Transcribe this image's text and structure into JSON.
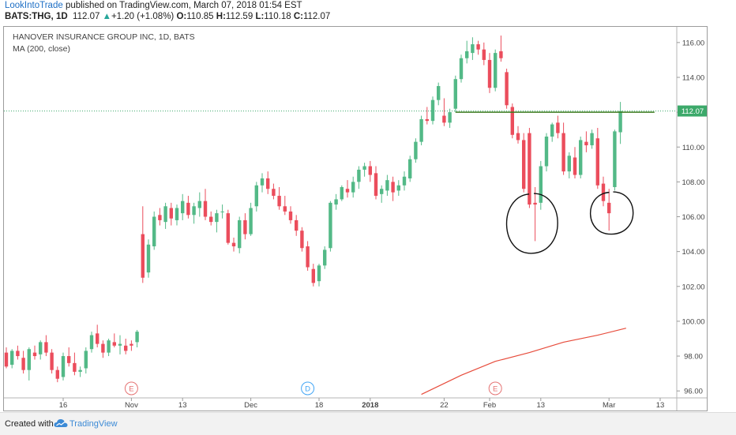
{
  "header": {
    "author": "LookIntoTrade",
    "published_text": "published on TradingView.com, March 07, 2018 01:54 EST",
    "symbol": "BATS:THG, 1D",
    "last": "112.07",
    "change_arrow": "▲",
    "change": "+1.20 (+1.08%)",
    "o_label": "O:",
    "o_value": "110.85",
    "h_label": "H:",
    "h_value": "112.59",
    "l_label": "L:",
    "l_value": "110.18",
    "c_label": "C:",
    "c_value": "112.07"
  },
  "legend": {
    "title": "HANOVER INSURANCE GROUP INC, 1D, BATS",
    "ma": "MA (200, close)"
  },
  "footer": {
    "created_with": "Created with",
    "brand": "TradingView",
    "logo_icon": "tradingview-cloud-icon"
  },
  "colors": {
    "up": "#53b987",
    "down": "#eb4d5c",
    "ma": "#e74c3c",
    "resistance": "#3b7a1e",
    "price_label": "#3ca96a",
    "event_earnings": "#e57373",
    "event_dividend": "#42a5f5"
  },
  "chart_data": {
    "type": "candlestick",
    "title": "HANOVER INSURANCE GROUP INC, 1D, BATS",
    "ylim": [
      95.6,
      116.9
    ],
    "y_ticks": [
      96,
      98,
      100,
      102,
      104,
      106,
      108,
      110,
      112,
      114,
      116
    ],
    "x_tick_labels": [
      {
        "label": "16",
        "index": 10
      },
      {
        "label": "Nov",
        "index": 22
      },
      {
        "label": "13",
        "index": 31
      },
      {
        "label": "Dec",
        "index": 43
      },
      {
        "label": "18",
        "index": 55
      },
      {
        "label": "2018",
        "index": 64
      },
      {
        "label": "22",
        "index": 77
      },
      {
        "label": "Feb",
        "index": 85
      },
      {
        "label": "13",
        "index": 94
      },
      {
        "label": "Mar",
        "index": 106
      },
      {
        "label": "13",
        "index": 115
      }
    ],
    "current_price": 112.07,
    "current_price_label": "112.07",
    "resistance_level": 112.0,
    "resistance_range": [
      79,
      114
    ],
    "events": [
      {
        "label": "E",
        "index": 22,
        "kind": "earnings"
      },
      {
        "label": "D",
        "index": 53,
        "kind": "dividend"
      },
      {
        "label": "E",
        "index": 86,
        "kind": "earnings"
      }
    ],
    "ma200": {
      "name": "MA (200, close)",
      "points": [
        [
          73,
          95.8
        ],
        [
          80,
          96.9
        ],
        [
          86,
          97.7
        ],
        [
          92,
          98.2
        ],
        [
          98,
          98.8
        ],
        [
          104,
          99.2
        ],
        [
          109,
          99.6
        ]
      ]
    },
    "annotations": [
      {
        "kind": "hand-drawn-circle",
        "cx_index": 92.5,
        "cy_value": 105.6,
        "rx_days": 5.5,
        "ry_units": 1.7
      },
      {
        "kind": "hand-drawn-circle",
        "cx_index": 106.5,
        "cy_value": 106.2,
        "rx_days": 4.6,
        "ry_units": 1.2
      }
    ],
    "candles": [
      [
        98.2,
        98.5,
        97.3,
        97.4
      ],
      [
        97.5,
        98.4,
        97.3,
        98.3
      ],
      [
        98.3,
        98.6,
        97.8,
        98.0
      ],
      [
        97.9,
        98.3,
        97.0,
        97.2
      ],
      [
        97.2,
        98.5,
        96.6,
        98.4
      ],
      [
        98.2,
        98.6,
        97.8,
        98.0
      ],
      [
        98.1,
        98.9,
        97.8,
        98.8
      ],
      [
        98.8,
        99.2,
        98.0,
        98.2
      ],
      [
        98.2,
        98.4,
        97.0,
        97.2
      ],
      [
        97.2,
        97.4,
        96.5,
        96.7
      ],
      [
        96.8,
        98.2,
        96.6,
        98.0
      ],
      [
        98.0,
        98.5,
        97.4,
        97.6
      ],
      [
        97.6,
        98.2,
        96.9,
        97.1
      ],
      [
        97.1,
        97.4,
        96.8,
        97.2
      ],
      [
        97.3,
        98.5,
        97.0,
        98.3
      ],
      [
        98.4,
        99.4,
        98.2,
        99.2
      ],
      [
        99.3,
        99.8,
        98.5,
        98.7
      ],
      [
        98.7,
        98.9,
        97.9,
        98.2
      ],
      [
        98.2,
        99.0,
        98.0,
        98.9
      ],
      [
        98.8,
        99.3,
        98.5,
        98.6
      ],
      [
        98.6,
        99.2,
        98.1,
        98.7
      ],
      [
        98.6,
        99.0,
        98.1,
        98.3
      ],
      [
        98.7,
        98.9,
        98.3,
        98.6
      ],
      [
        98.8,
        99.5,
        98.5,
        99.4
      ],
      [
        105.0,
        106.6,
        102.2,
        102.5
      ],
      [
        102.8,
        104.7,
        102.5,
        104.4
      ],
      [
        104.3,
        106.3,
        104.1,
        106.0
      ],
      [
        106.1,
        106.5,
        105.5,
        105.8
      ],
      [
        105.7,
        106.8,
        105.3,
        106.6
      ],
      [
        106.5,
        106.8,
        105.5,
        105.9
      ],
      [
        105.8,
        106.7,
        105.5,
        106.5
      ],
      [
        106.2,
        107.3,
        105.8,
        106.9
      ],
      [
        106.8,
        107.2,
        105.9,
        106.1
      ],
      [
        106.1,
        106.8,
        105.6,
        106.6
      ],
      [
        106.5,
        107.4,
        106.0,
        106.9
      ],
      [
        106.9,
        107.6,
        105.8,
        106.0
      ],
      [
        106.0,
        106.3,
        105.5,
        105.7
      ],
      [
        105.7,
        106.4,
        105.1,
        106.2
      ],
      [
        106.3,
        106.7,
        105.9,
        106.3
      ],
      [
        106.2,
        106.4,
        104.4,
        104.5
      ],
      [
        104.5,
        104.8,
        104.0,
        104.3
      ],
      [
        104.2,
        106.0,
        103.9,
        105.8
      ],
      [
        105.8,
        106.2,
        104.7,
        105.0
      ],
      [
        105.0,
        106.8,
        104.9,
        106.5
      ],
      [
        106.6,
        108.0,
        106.3,
        107.8
      ],
      [
        107.8,
        108.5,
        107.4,
        108.2
      ],
      [
        108.2,
        108.6,
        107.3,
        107.6
      ],
      [
        107.6,
        107.9,
        107.0,
        107.2
      ],
      [
        107.2,
        107.7,
        106.4,
        106.6
      ],
      [
        106.6,
        107.2,
        106.1,
        106.3
      ],
      [
        106.3,
        106.6,
        105.6,
        105.8
      ],
      [
        105.8,
        106.1,
        104.9,
        105.2
      ],
      [
        105.2,
        105.4,
        104.0,
        104.2
      ],
      [
        104.3,
        104.6,
        102.9,
        103.1
      ],
      [
        103.0,
        103.3,
        102.0,
        102.2
      ],
      [
        102.3,
        103.3,
        102.0,
        103.2
      ],
      [
        103.2,
        104.3,
        103.0,
        104.1
      ],
      [
        104.2,
        106.9,
        104.0,
        106.8
      ],
      [
        106.7,
        107.3,
        106.4,
        107.0
      ],
      [
        107.0,
        107.8,
        106.9,
        107.7
      ],
      [
        107.6,
        108.1,
        107.1,
        107.4
      ],
      [
        107.4,
        108.3,
        107.1,
        108.0
      ],
      [
        108.0,
        108.9,
        107.6,
        108.7
      ],
      [
        108.7,
        109.1,
        108.3,
        108.9
      ],
      [
        108.9,
        109.2,
        108.0,
        108.4
      ],
      [
        108.5,
        108.9,
        107.0,
        107.2
      ],
      [
        107.3,
        107.8,
        106.8,
        107.6
      ],
      [
        107.5,
        108.4,
        107.2,
        108.1
      ],
      [
        108.0,
        108.3,
        106.9,
        107.4
      ],
      [
        107.5,
        108.1,
        107.2,
        107.8
      ],
      [
        107.8,
        108.6,
        107.5,
        108.3
      ],
      [
        108.2,
        109.5,
        108.0,
        109.3
      ],
      [
        109.3,
        110.5,
        109.1,
        110.3
      ],
      [
        110.3,
        111.8,
        110.1,
        111.6
      ],
      [
        111.6,
        112.3,
        111.3,
        111.5
      ],
      [
        111.5,
        112.9,
        111.3,
        112.7
      ],
      [
        112.7,
        113.7,
        112.4,
        113.5
      ],
      [
        111.8,
        112.8,
        111.2,
        111.4
      ],
      [
        111.4,
        112.2,
        111.1,
        112.0
      ],
      [
        112.2,
        114.1,
        112.0,
        113.9
      ],
      [
        113.9,
        115.3,
        113.7,
        115.1
      ],
      [
        115.1,
        116.1,
        114.8,
        115.5
      ],
      [
        115.4,
        116.3,
        115.0,
        115.9
      ],
      [
        115.9,
        116.1,
        115.3,
        115.6
      ],
      [
        115.6,
        116.0,
        114.7,
        115.0
      ],
      [
        115.0,
        115.4,
        113.1,
        113.4
      ],
      [
        113.4,
        115.6,
        113.2,
        115.4
      ],
      [
        115.5,
        116.4,
        114.9,
        115.1
      ],
      [
        114.3,
        114.5,
        112.2,
        112.4
      ],
      [
        112.3,
        112.5,
        110.5,
        110.7
      ],
      [
        110.8,
        111.2,
        110.2,
        110.4
      ],
      [
        110.4,
        110.8,
        107.4,
        107.6
      ],
      [
        110.8,
        111.1,
        106.5,
        106.7
      ],
      [
        106.8,
        107.7,
        104.6,
        106.7
      ],
      [
        106.8,
        109.2,
        106.4,
        108.9
      ],
      [
        108.9,
        110.8,
        108.6,
        110.6
      ],
      [
        110.6,
        111.4,
        110.3,
        111.3
      ],
      [
        111.4,
        111.8,
        110.5,
        110.8
      ],
      [
        110.8,
        111.4,
        108.4,
        108.6
      ],
      [
        108.6,
        109.7,
        108.2,
        109.5
      ],
      [
        109.4,
        110.0,
        108.2,
        108.4
      ],
      [
        108.4,
        110.6,
        108.2,
        110.4
      ],
      [
        110.3,
        110.9,
        109.7,
        110.1
      ],
      [
        110.1,
        111.0,
        109.9,
        110.8
      ],
      [
        110.5,
        111.1,
        107.6,
        107.8
      ],
      [
        107.9,
        108.3,
        106.6,
        106.9
      ],
      [
        106.8,
        107.6,
        105.2,
        106.2
      ],
      [
        107.7,
        111.0,
        107.5,
        110.9
      ],
      [
        110.85,
        112.59,
        110.18,
        112.07
      ]
    ]
  }
}
